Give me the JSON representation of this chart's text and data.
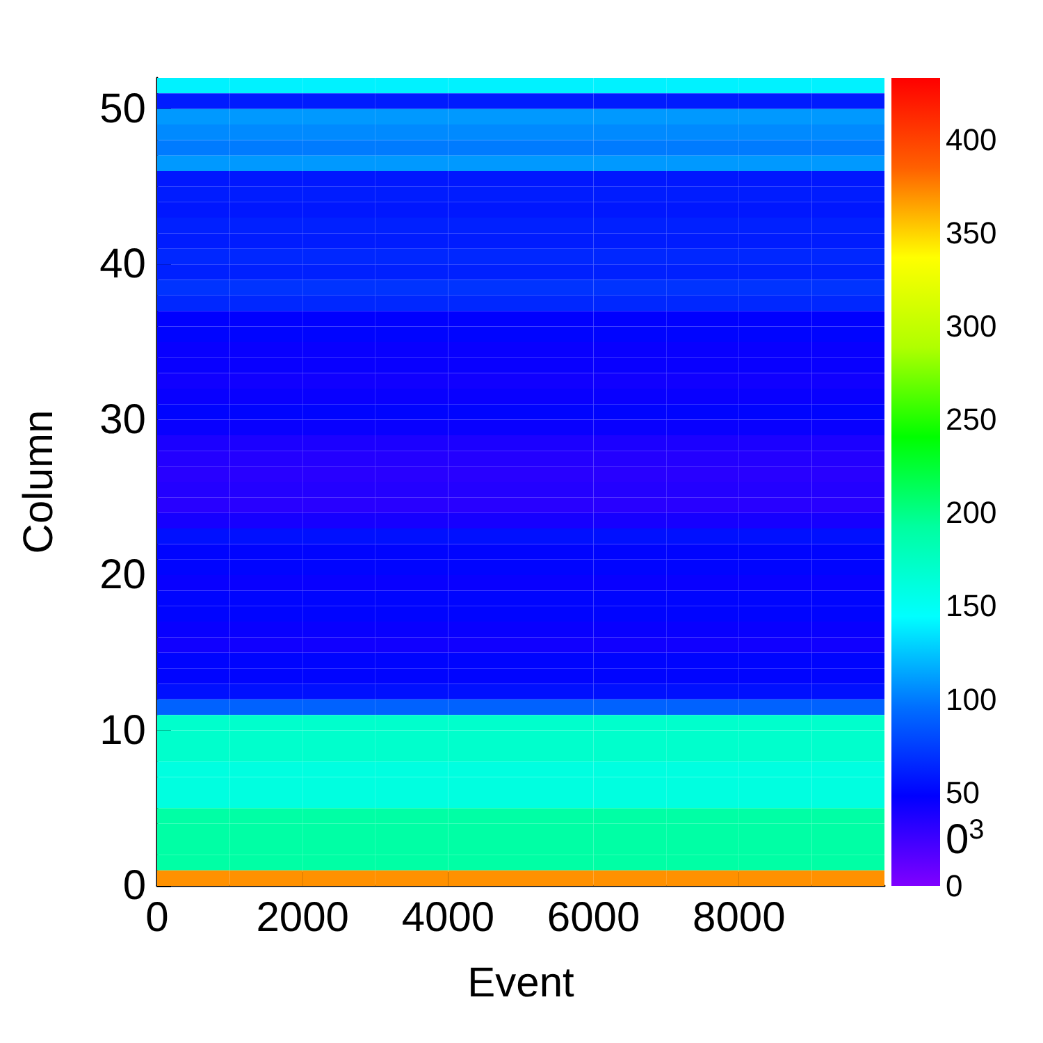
{
  "chart_data": {
    "type": "heatmap",
    "xlabel": "Event",
    "ylabel": "Column",
    "x": [
      500,
      1500,
      2500,
      3500,
      4500,
      5500,
      6500,
      7500,
      8500,
      9500
    ],
    "xlim": [
      0,
      10000
    ],
    "xticks": [
      0,
      2000,
      4000,
      6000,
      8000
    ],
    "ylim": [
      0,
      52
    ],
    "yticks": [
      0,
      10,
      20,
      30,
      40,
      50
    ],
    "clim": [
      0,
      433
    ],
    "cticks": [
      0,
      50,
      100,
      150,
      200,
      250,
      300,
      350,
      400
    ],
    "colors": [
      "#8000ff",
      "#0000ff",
      "#0070ff",
      "#00ffff",
      "#00ffa0",
      "#00ff00",
      "#b0ff00",
      "#ffff00",
      "#ff6000",
      "#ff0000"
    ],
    "annotations": [
      "0$^{3}$"
    ],
    "grid": false,
    "cells": [
      [
        140,
        140,
        140,
        140,
        140,
        140,
        140,
        140,
        140,
        140
      ],
      [
        60,
        60,
        60,
        60,
        60,
        60,
        60,
        60,
        60,
        60
      ],
      [
        110,
        110,
        110,
        110,
        110,
        110,
        110,
        110,
        110,
        110
      ],
      [
        105,
        105,
        105,
        105,
        105,
        105,
        105,
        105,
        105,
        105
      ],
      [
        100,
        100,
        100,
        100,
        100,
        100,
        100,
        100,
        100,
        100
      ],
      [
        110,
        110,
        110,
        110,
        110,
        110,
        110,
        110,
        110,
        110
      ],
      [
        58,
        58,
        58,
        58,
        58,
        58,
        58,
        58,
        58,
        58
      ],
      [
        60,
        60,
        60,
        60,
        60,
        60,
        60,
        60,
        60,
        60
      ],
      [
        58,
        58,
        58,
        58,
        58,
        58,
        58,
        58,
        58,
        58
      ],
      [
        62,
        62,
        62,
        62,
        62,
        62,
        62,
        62,
        62,
        62
      ],
      [
        60,
        60,
        60,
        60,
        60,
        60,
        60,
        60,
        60,
        60
      ],
      [
        65,
        65,
        65,
        65,
        65,
        65,
        65,
        65,
        65,
        65
      ],
      [
        62,
        62,
        62,
        62,
        62,
        62,
        62,
        62,
        62,
        62
      ],
      [
        70,
        70,
        70,
        70,
        70,
        70,
        70,
        70,
        70,
        70
      ],
      [
        65,
        65,
        65,
        65,
        65,
        65,
        65,
        65,
        65,
        65
      ],
      [
        48,
        48,
        48,
        48,
        48,
        48,
        48,
        48,
        48,
        48
      ],
      [
        50,
        50,
        50,
        50,
        50,
        50,
        50,
        50,
        50,
        50
      ],
      [
        45,
        45,
        45,
        45,
        45,
        45,
        45,
        45,
        45,
        45
      ],
      [
        45,
        45,
        45,
        45,
        45,
        45,
        45,
        45,
        45,
        45
      ],
      [
        42,
        42,
        42,
        42,
        42,
        42,
        42,
        42,
        42,
        42
      ],
      [
        45,
        45,
        45,
        45,
        45,
        45,
        45,
        45,
        45,
        45
      ],
      [
        50,
        50,
        50,
        50,
        50,
        50,
        50,
        50,
        50,
        50
      ],
      [
        45,
        45,
        45,
        45,
        45,
        45,
        45,
        45,
        45,
        45
      ],
      [
        38,
        38,
        38,
        38,
        38,
        38,
        38,
        38,
        38,
        38
      ],
      [
        35,
        35,
        35,
        35,
        35,
        35,
        35,
        35,
        35,
        35
      ],
      [
        33,
        33,
        33,
        33,
        33,
        33,
        33,
        33,
        33,
        33
      ],
      [
        35,
        35,
        35,
        35,
        35,
        35,
        35,
        35,
        35,
        35
      ],
      [
        33,
        33,
        33,
        33,
        33,
        33,
        33,
        33,
        33,
        33
      ],
      [
        40,
        40,
        40,
        40,
        40,
        40,
        40,
        40,
        40,
        40
      ],
      [
        55,
        55,
        55,
        55,
        55,
        55,
        55,
        55,
        55,
        55
      ],
      [
        50,
        50,
        50,
        50,
        50,
        50,
        50,
        50,
        50,
        50
      ],
      [
        50,
        50,
        50,
        50,
        50,
        50,
        50,
        50,
        50,
        50
      ],
      [
        45,
        45,
        45,
        45,
        45,
        45,
        45,
        45,
        45,
        45
      ],
      [
        50,
        50,
        50,
        50,
        50,
        50,
        50,
        50,
        50,
        50
      ],
      [
        50,
        50,
        50,
        50,
        50,
        50,
        50,
        50,
        50,
        50
      ],
      [
        45,
        45,
        45,
        45,
        45,
        45,
        45,
        45,
        45,
        45
      ],
      [
        42,
        42,
        42,
        42,
        42,
        42,
        42,
        42,
        42,
        42
      ],
      [
        50,
        50,
        50,
        50,
        50,
        50,
        50,
        50,
        50,
        50
      ],
      [
        50,
        50,
        50,
        50,
        50,
        50,
        50,
        50,
        50,
        50
      ],
      [
        55,
        55,
        55,
        55,
        55,
        55,
        55,
        55,
        55,
        55
      ],
      [
        90,
        90,
        90,
        90,
        90,
        90,
        90,
        90,
        90,
        90
      ],
      [
        170,
        170,
        170,
        170,
        170,
        170,
        170,
        170,
        170,
        170
      ],
      [
        170,
        170,
        170,
        170,
        170,
        170,
        170,
        170,
        170,
        170
      ],
      [
        170,
        170,
        170,
        170,
        170,
        170,
        170,
        170,
        170,
        170
      ],
      [
        160,
        160,
        160,
        160,
        160,
        160,
        160,
        160,
        160,
        160
      ],
      [
        160,
        160,
        160,
        160,
        160,
        160,
        160,
        160,
        160,
        160
      ],
      [
        160,
        160,
        160,
        160,
        160,
        160,
        160,
        160,
        160,
        160
      ],
      [
        190,
        190,
        190,
        190,
        190,
        190,
        190,
        190,
        190,
        190
      ],
      [
        190,
        190,
        190,
        190,
        190,
        190,
        190,
        190,
        190,
        190
      ],
      [
        190,
        190,
        190,
        190,
        190,
        190,
        190,
        190,
        190,
        190
      ],
      [
        190,
        190,
        190,
        190,
        190,
        190,
        190,
        190,
        190,
        190
      ],
      [
        370,
        370,
        370,
        370,
        370,
        370,
        370,
        370,
        370,
        370
      ]
    ]
  }
}
